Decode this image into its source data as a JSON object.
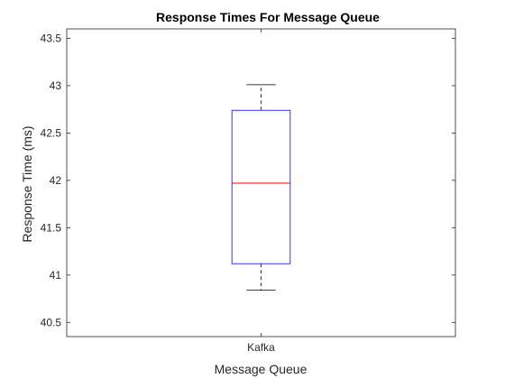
{
  "chart_data": {
    "type": "box",
    "title": "Response Times For Message Queue",
    "xlabel": "Message Queue",
    "ylabel": "Response Time (ms)",
    "categories": [
      "Kafka"
    ],
    "boxes": [
      {
        "name": "Kafka",
        "whisker_low": 40.84,
        "q1": 41.12,
        "median": 41.97,
        "q3": 42.74,
        "whisker_high": 43.01
      }
    ],
    "ylim": [
      40.35,
      43.6
    ],
    "yticks": [
      40.5,
      41,
      41.5,
      42,
      42.5,
      43,
      43.5
    ],
    "ytick_labels": [
      "40.5",
      "41",
      "41.5",
      "42",
      "42.5",
      "43",
      "43.5"
    ],
    "grid": false,
    "colors": {
      "box": "#0000ff",
      "median": "#ff0000",
      "whisker": "#000000",
      "axes": "#262626"
    }
  }
}
